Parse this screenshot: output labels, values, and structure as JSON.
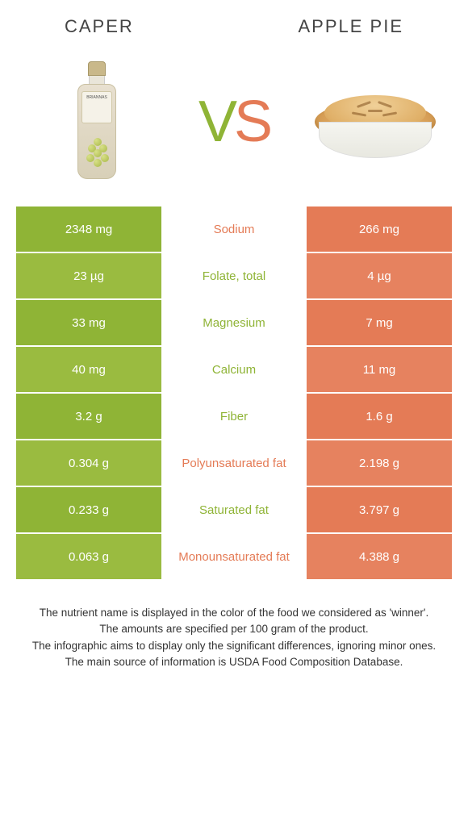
{
  "header": {
    "left_label": "Caper",
    "right_label": "Apple pie"
  },
  "vs": {
    "v": "V",
    "s": "S"
  },
  "colors": {
    "green_a": "#8fb436",
    "green_b": "#9abb40",
    "orange_a": "#e47b56",
    "orange_b": "#e6825f",
    "white": "#ffffff"
  },
  "table": {
    "rows": [
      {
        "nutrient": "Sodium",
        "left": "2348 mg",
        "right": "266 mg",
        "winner": "right",
        "left_shade": "a",
        "right_shade": "a"
      },
      {
        "nutrient": "Folate, total",
        "left": "23 µg",
        "right": "4 µg",
        "winner": "left",
        "left_shade": "b",
        "right_shade": "b"
      },
      {
        "nutrient": "Magnesium",
        "left": "33 mg",
        "right": "7 mg",
        "winner": "left",
        "left_shade": "a",
        "right_shade": "a"
      },
      {
        "nutrient": "Calcium",
        "left": "40 mg",
        "right": "11 mg",
        "winner": "left",
        "left_shade": "b",
        "right_shade": "b"
      },
      {
        "nutrient": "Fiber",
        "left": "3.2 g",
        "right": "1.6 g",
        "winner": "left",
        "left_shade": "a",
        "right_shade": "a"
      },
      {
        "nutrient": "Polyunsaturated fat",
        "left": "0.304 g",
        "right": "2.198 g",
        "winner": "right",
        "left_shade": "b",
        "right_shade": "b"
      },
      {
        "nutrient": "Saturated fat",
        "left": "0.233 g",
        "right": "3.797 g",
        "winner": "left",
        "left_shade": "a",
        "right_shade": "a"
      },
      {
        "nutrient": "Monounsaturated fat",
        "left": "0.063 g",
        "right": "4.388 g",
        "winner": "right",
        "left_shade": "b",
        "right_shade": "b"
      }
    ]
  },
  "footer": {
    "line1": "The nutrient name is displayed in the color of the food we considered as 'winner'.",
    "line2": "The amounts are specified per 100 gram of the product.",
    "line3": "The infographic aims to display only the significant differences, ignoring minor ones.",
    "line4": "The main source of information is USDA Food Composition Database."
  }
}
